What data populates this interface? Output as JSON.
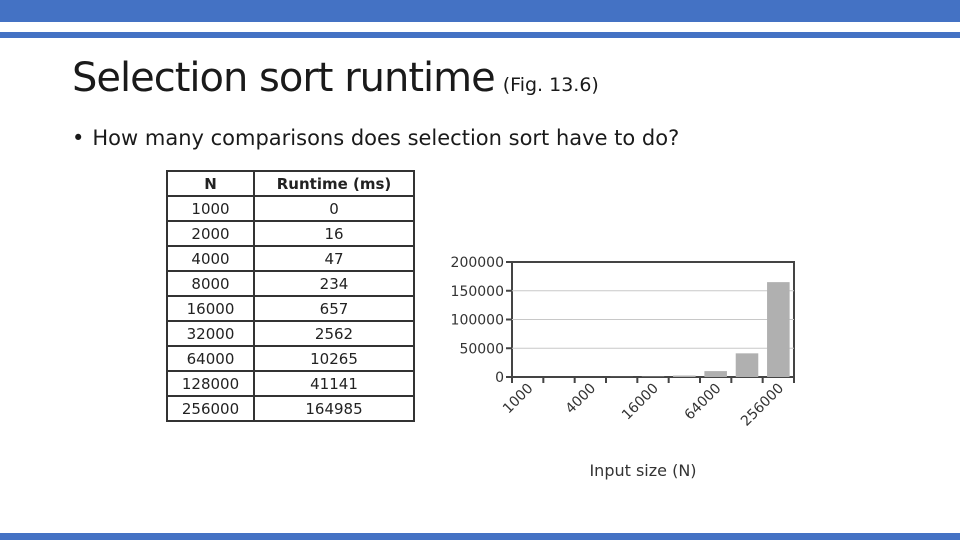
{
  "slide": {
    "title": "Selection sort runtime",
    "title_note": "(Fig. 13.6)",
    "bullet_marker": "•",
    "bullet": "How many comparisons does selection sort have to do?",
    "accent_color": "#4472c4"
  },
  "table": {
    "headers": [
      "N",
      "Runtime (ms)"
    ],
    "rows": [
      [
        "1000",
        "0"
      ],
      [
        "2000",
        "16"
      ],
      [
        "4000",
        "47"
      ],
      [
        "8000",
        "234"
      ],
      [
        "16000",
        "657"
      ],
      [
        "32000",
        "2562"
      ],
      [
        "64000",
        "10265"
      ],
      [
        "128000",
        "41141"
      ],
      [
        "256000",
        "164985"
      ]
    ]
  },
  "chart_data": {
    "type": "bar",
    "categories": [
      "1000",
      "2000",
      "4000",
      "8000",
      "16000",
      "32000",
      "64000",
      "128000",
      "256000"
    ],
    "x_tick_labels": [
      "1000",
      "4000",
      "16000",
      "64000",
      "256000"
    ],
    "values": [
      0,
      16,
      47,
      234,
      657,
      2562,
      10265,
      41141,
      164985
    ],
    "y_ticks": [
      "200000",
      "150000",
      "100000",
      "50000",
      "0"
    ],
    "ylim": [
      0,
      200000
    ],
    "xlabel": "Input size (N)",
    "ylabel": "",
    "grid": true,
    "bar_color": "#b0b0b0"
  }
}
